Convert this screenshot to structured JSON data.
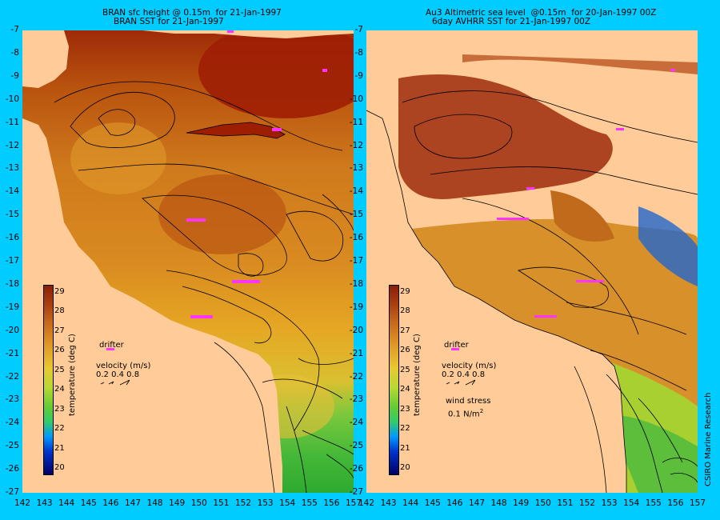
{
  "left_panel": {
    "title_line1": "BRAN sfc height @ 0.15m  for 21-Jan-1997",
    "title_line2": "BRAN SST for 21-Jan-1997"
  },
  "right_panel": {
    "title_line1": "Au3 Altimetric sea level  @0.15m  for 20-Jan-1997 00Z",
    "title_line2": "6day AVHRR SST for 21-Jan-1997 00Z"
  },
  "y_axis_ticks": [
    "-7",
    "-8",
    "-9",
    "-10",
    "-11",
    "-12",
    "-13",
    "-14",
    "-15",
    "-16",
    "-17",
    "-18",
    "-19",
    "-20",
    "-21",
    "-22",
    "-23",
    "-24",
    "-25",
    "-26",
    "-27"
  ],
  "x_axis_ticks_left": [
    "142",
    "143",
    "144",
    "145",
    "146",
    "147",
    "148",
    "149",
    "150",
    "151",
    "152",
    "153",
    "154",
    "155",
    "156",
    "157"
  ],
  "x_axis_ticks_right": [
    "142",
    "143",
    "144",
    "145",
    "146",
    "147",
    "148",
    "149",
    "150",
    "151",
    "152",
    "153",
    "154",
    "155",
    "156",
    "157"
  ],
  "colorbar": {
    "labels": [
      "29",
      "28",
      "27",
      "26",
      "25",
      "24",
      "23",
      "22",
      "21",
      "20"
    ],
    "title": "temperature (deg C)"
  },
  "legend": {
    "drifter": "drifter",
    "velocity": "velocity (m/s)",
    "velocity_values": "0.2 0.4 0.8",
    "wind_stress": "wind stress",
    "wind_value": "0.1 N/m",
    "wind_unit_sup": "2"
  },
  "credit": "CSIRO Marine Research",
  "colors": {
    "background": "#00ccff",
    "land": "#ffcc99",
    "drifter": "#ff33ff"
  }
}
